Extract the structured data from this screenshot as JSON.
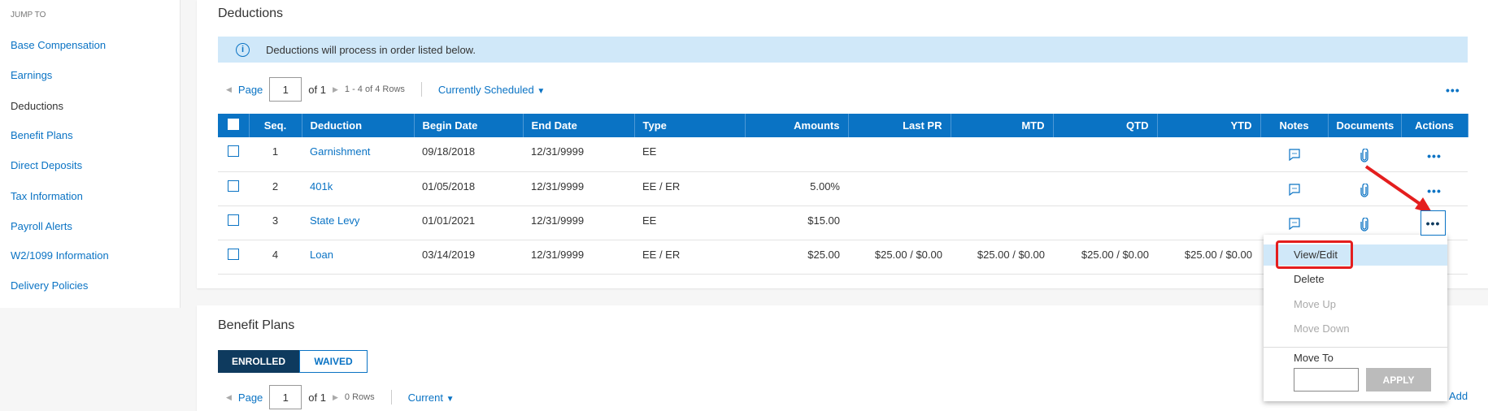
{
  "sidebar": {
    "heading": "JUMP TO",
    "items": [
      {
        "label": "Base Compensation"
      },
      {
        "label": "Earnings"
      },
      {
        "label": "Deductions"
      },
      {
        "label": "Benefit Plans"
      },
      {
        "label": "Direct Deposits"
      },
      {
        "label": "Tax Information"
      },
      {
        "label": "Payroll Alerts"
      },
      {
        "label": "W2/1099 Information"
      },
      {
        "label": "Delivery Policies"
      }
    ]
  },
  "deductions": {
    "title": "Deductions",
    "info": "Deductions will process in order listed below.",
    "pager": {
      "page_label": "Page",
      "page": "1",
      "of": "of 1",
      "rows": "1 - 4 of 4 Rows",
      "filter": "Currently Scheduled"
    },
    "columns": [
      "Seq.",
      "Deduction",
      "Begin Date",
      "End Date",
      "Type",
      "Amounts",
      "Last PR",
      "MTD",
      "QTD",
      "YTD",
      "Notes",
      "Documents",
      "Actions"
    ],
    "rows": [
      {
        "seq": "1",
        "name": "Garnishment",
        "begin": "09/18/2018",
        "end": "12/31/9999",
        "type": "EE",
        "amount": "",
        "last_pr": "",
        "mtd": "",
        "qtd": "",
        "ytd": ""
      },
      {
        "seq": "2",
        "name": "401k",
        "begin": "01/05/2018",
        "end": "12/31/9999",
        "type": "EE / ER",
        "amount": "5.00%",
        "last_pr": "",
        "mtd": "",
        "qtd": "",
        "ytd": ""
      },
      {
        "seq": "3",
        "name": "State Levy",
        "begin": "01/01/2021",
        "end": "12/31/9999",
        "type": "EE",
        "amount": "$15.00",
        "last_pr": "",
        "mtd": "",
        "qtd": "",
        "ytd": ""
      },
      {
        "seq": "4",
        "name": "Loan",
        "begin": "03/14/2019",
        "end": "12/31/9999",
        "type": "EE / ER",
        "amount": "$25.00",
        "last_pr": "$25.00 / $0.00",
        "mtd": "$25.00 / $0.00",
        "qtd": "$25.00 / $0.00",
        "ytd": "$25.00 / $0.00"
      }
    ]
  },
  "action_menu": {
    "items": [
      "View/Edit",
      "Delete",
      "Move Up",
      "Move Down"
    ],
    "move_to_label": "Move To",
    "move_to_value": "",
    "apply": "APPLY"
  },
  "benefit_plans": {
    "title": "Benefit Plans",
    "tabs": [
      "ENROLLED",
      "WAIVED"
    ],
    "pager": {
      "page_label": "Page",
      "page": "1",
      "of": "of 1",
      "rows": "0 Rows",
      "filter": "Current"
    },
    "add": "Add"
  },
  "colors": {
    "primary": "#0a73c4",
    "dark": "#0e3a5e",
    "info_bg": "#d0e8f9",
    "highlight": "#e41e1e"
  }
}
